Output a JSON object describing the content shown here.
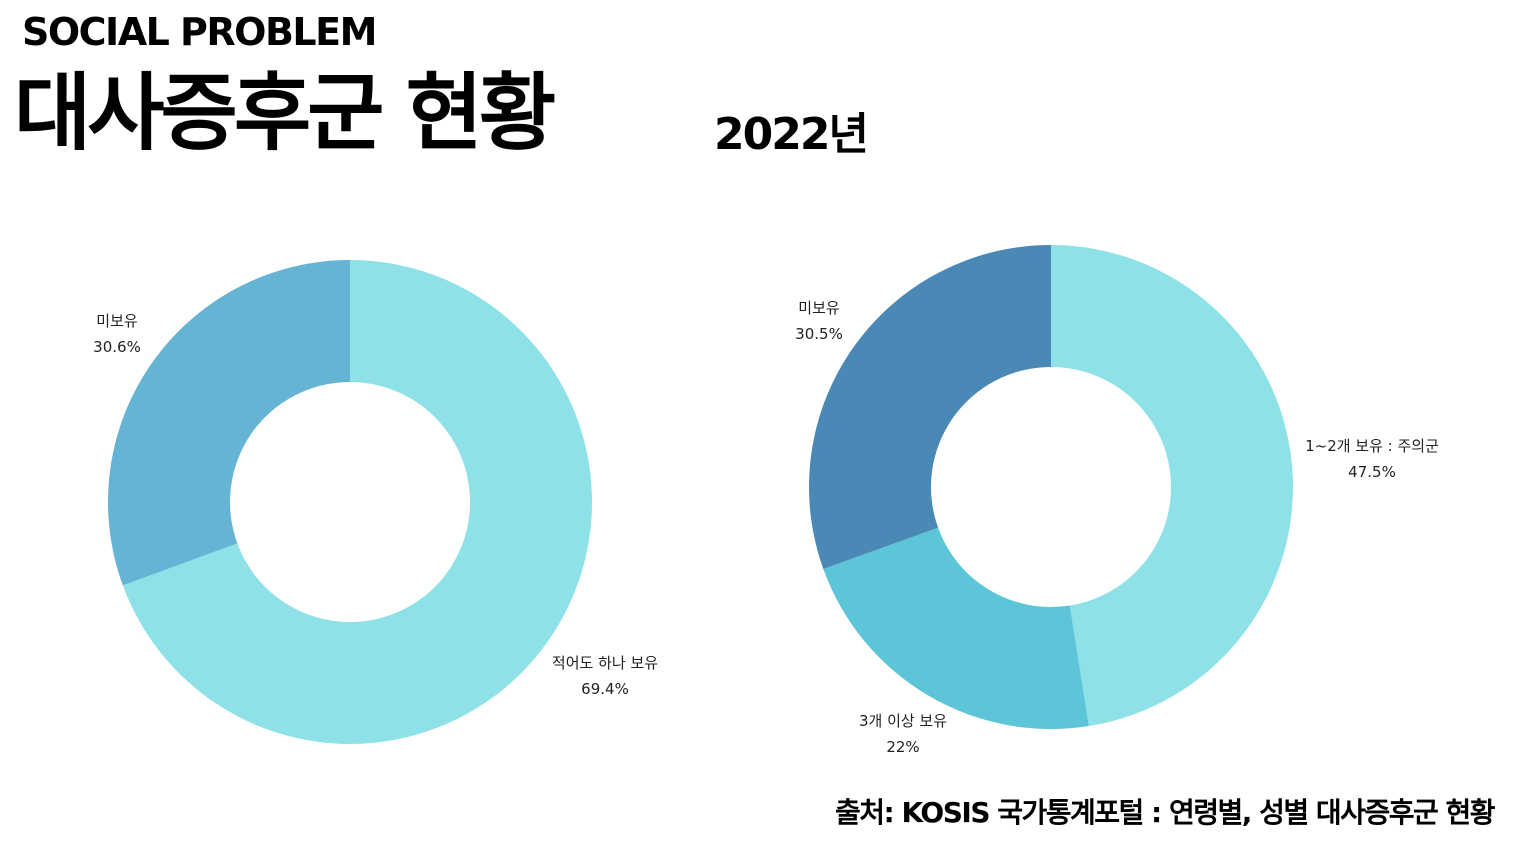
{
  "header": {
    "subtitle": "SOCIAL PROBLEM",
    "title": "대사증후군 현황",
    "year": "2022년"
  },
  "footer": {
    "source": "출처: KOSIS 국가통계포털 : 연령별, 성별 대사증후군 현황"
  },
  "chart_data": [
    {
      "type": "pie",
      "donut": true,
      "title": "",
      "categories": [
        "적어도 하나 보유",
        "미보유"
      ],
      "values": [
        69.4,
        30.6
      ],
      "value_labels": [
        "69.4%",
        "30.6%"
      ],
      "colors": [
        "#8ee1e7",
        "#65b4d3"
      ]
    },
    {
      "type": "pie",
      "donut": true,
      "title": "",
      "categories": [
        "1~2개 보유 : 주의군",
        "3개 이상 보유",
        "미보유"
      ],
      "values": [
        47.5,
        22,
        30.5
      ],
      "value_labels": [
        "47.5%",
        "22%",
        "30.5%"
      ],
      "colors": [
        "#8ee1e7",
        "#5cc5d8",
        "#4a89b5"
      ]
    }
  ]
}
